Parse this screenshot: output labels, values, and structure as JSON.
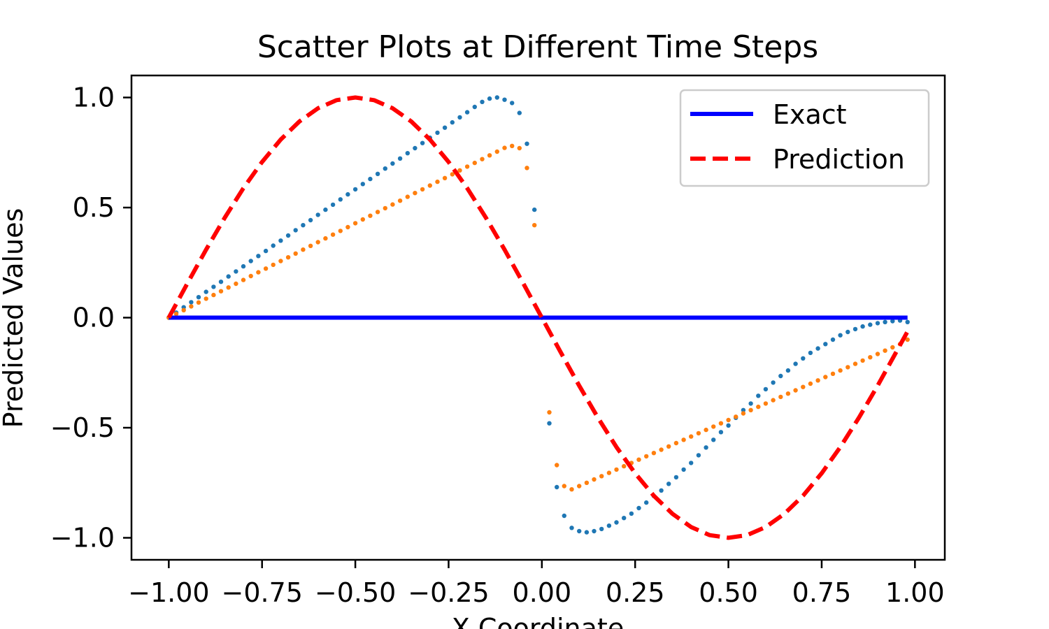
{
  "chart_data": {
    "type": "scatter",
    "title": "Scatter Plots at Different Time Steps",
    "xlabel": "X Coordinate",
    "ylabel": "Predicted Values",
    "xlim": [
      -1.1,
      1.08
    ],
    "ylim": [
      -1.1,
      1.1
    ],
    "xticks": [
      -1.0,
      -0.75,
      -0.5,
      -0.25,
      0.0,
      0.25,
      0.5,
      0.75,
      1.0
    ],
    "xtick_labels": [
      "−1.00",
      "−0.75",
      "−0.50",
      "−0.25",
      "0.00",
      "0.25",
      "0.50",
      "0.75",
      "1.00"
    ],
    "yticks": [
      -1.0,
      -0.5,
      0.0,
      0.5,
      1.0
    ],
    "ytick_labels": [
      "−1.0",
      "−0.5",
      "0.0",
      "0.5",
      "1.0"
    ],
    "grid": false,
    "legend_position": "top-right",
    "series": [
      {
        "name": "Exact",
        "kind": "line",
        "style": "solid",
        "color": "#0000ff",
        "x": [
          -1.0,
          0.0,
          0.98
        ],
        "y": [
          0.0,
          0.0,
          0.0
        ]
      },
      {
        "name": "Prediction",
        "kind": "line",
        "style": "dashed",
        "color": "#ff0000",
        "x": [
          -1.0,
          -0.95,
          -0.9,
          -0.85,
          -0.8,
          -0.75,
          -0.7,
          -0.65,
          -0.6,
          -0.55,
          -0.5,
          -0.45,
          -0.4,
          -0.35,
          -0.3,
          -0.25,
          -0.2,
          -0.15,
          -0.1,
          -0.05,
          0.0,
          0.05,
          0.1,
          0.15,
          0.2,
          0.25,
          0.3,
          0.35,
          0.4,
          0.45,
          0.5,
          0.55,
          0.6,
          0.65,
          0.7,
          0.75,
          0.8,
          0.85,
          0.9,
          0.95,
          0.98
        ],
        "y": [
          0.0,
          0.156,
          0.309,
          0.454,
          0.588,
          0.707,
          0.809,
          0.891,
          0.951,
          0.988,
          1.0,
          0.988,
          0.951,
          0.891,
          0.809,
          0.707,
          0.588,
          0.454,
          0.309,
          0.156,
          0.0,
          -0.156,
          -0.309,
          -0.454,
          -0.588,
          -0.707,
          -0.809,
          -0.891,
          -0.951,
          -0.988,
          -1.0,
          -0.988,
          -0.951,
          -0.891,
          -0.809,
          -0.707,
          -0.588,
          -0.454,
          -0.309,
          -0.156,
          -0.063
        ]
      },
      {
        "kind": "scatter",
        "color": "#1f77b4",
        "x": [
          -1.0,
          -0.98,
          -0.96,
          -0.94,
          -0.92,
          -0.9,
          -0.88,
          -0.86,
          -0.84,
          -0.82,
          -0.8,
          -0.78,
          -0.76,
          -0.74,
          -0.72,
          -0.7,
          -0.68,
          -0.66,
          -0.64,
          -0.62,
          -0.6,
          -0.58,
          -0.56,
          -0.54,
          -0.52,
          -0.5,
          -0.48,
          -0.46,
          -0.44,
          -0.42,
          -0.4,
          -0.38,
          -0.36,
          -0.34,
          -0.32,
          -0.3,
          -0.28,
          -0.26,
          -0.24,
          -0.22,
          -0.2,
          -0.18,
          -0.16,
          -0.14,
          -0.12,
          -0.1,
          -0.08,
          -0.06,
          -0.04,
          -0.02,
          0.0,
          0.02,
          0.04,
          0.06,
          0.08,
          0.1,
          0.12,
          0.14,
          0.16,
          0.18,
          0.2,
          0.22,
          0.24,
          0.26,
          0.28,
          0.3,
          0.32,
          0.34,
          0.36,
          0.38,
          0.4,
          0.42,
          0.44,
          0.46,
          0.48,
          0.5,
          0.52,
          0.54,
          0.56,
          0.58,
          0.6,
          0.62,
          0.64,
          0.66,
          0.68,
          0.7,
          0.72,
          0.74,
          0.76,
          0.78,
          0.8,
          0.82,
          0.84,
          0.86,
          0.88,
          0.9,
          0.92,
          0.94,
          0.96,
          0.98
        ],
        "y": [
          0.0,
          0.023,
          0.047,
          0.07,
          0.093,
          0.117,
          0.14,
          0.163,
          0.187,
          0.21,
          0.233,
          0.257,
          0.28,
          0.303,
          0.327,
          0.35,
          0.373,
          0.397,
          0.42,
          0.443,
          0.467,
          0.49,
          0.513,
          0.537,
          0.56,
          0.583,
          0.607,
          0.63,
          0.653,
          0.677,
          0.7,
          0.723,
          0.747,
          0.77,
          0.793,
          0.817,
          0.84,
          0.863,
          0.887,
          0.91,
          0.933,
          0.957,
          0.98,
          0.995,
          1.0,
          0.99,
          0.975,
          0.93,
          0.79,
          0.49,
          0.0,
          -0.48,
          -0.77,
          -0.9,
          -0.955,
          -0.97,
          -0.975,
          -0.97,
          -0.96,
          -0.945,
          -0.93,
          -0.91,
          -0.89,
          -0.865,
          -0.84,
          -0.81,
          -0.785,
          -0.755,
          -0.725,
          -0.69,
          -0.66,
          -0.625,
          -0.59,
          -0.555,
          -0.52,
          -0.49,
          -0.455,
          -0.42,
          -0.39,
          -0.355,
          -0.325,
          -0.295,
          -0.265,
          -0.24,
          -0.21,
          -0.185,
          -0.16,
          -0.14,
          -0.12,
          -0.1,
          -0.08,
          -0.065,
          -0.052,
          -0.04,
          -0.032,
          -0.025,
          -0.02,
          -0.016,
          -0.013,
          -0.02
        ]
      },
      {
        "kind": "scatter",
        "color": "#ff7f0e",
        "x": [
          -1.0,
          -0.98,
          -0.96,
          -0.94,
          -0.92,
          -0.9,
          -0.88,
          -0.86,
          -0.84,
          -0.82,
          -0.8,
          -0.78,
          -0.76,
          -0.74,
          -0.72,
          -0.7,
          -0.68,
          -0.66,
          -0.64,
          -0.62,
          -0.6,
          -0.58,
          -0.56,
          -0.54,
          -0.52,
          -0.5,
          -0.48,
          -0.46,
          -0.44,
          -0.42,
          -0.4,
          -0.38,
          -0.36,
          -0.34,
          -0.32,
          -0.3,
          -0.28,
          -0.26,
          -0.24,
          -0.22,
          -0.2,
          -0.18,
          -0.16,
          -0.14,
          -0.12,
          -0.1,
          -0.08,
          -0.06,
          -0.04,
          -0.02,
          0.0,
          0.02,
          0.04,
          0.06,
          0.08,
          0.1,
          0.12,
          0.14,
          0.16,
          0.18,
          0.2,
          0.22,
          0.24,
          0.26,
          0.28,
          0.3,
          0.32,
          0.34,
          0.36,
          0.38,
          0.4,
          0.42,
          0.44,
          0.46,
          0.48,
          0.5,
          0.52,
          0.54,
          0.56,
          0.58,
          0.6,
          0.62,
          0.64,
          0.66,
          0.68,
          0.7,
          0.72,
          0.74,
          0.76,
          0.78,
          0.8,
          0.82,
          0.84,
          0.86,
          0.88,
          0.9,
          0.92,
          0.94,
          0.96,
          0.98
        ],
        "y": [
          0.0,
          0.017,
          0.034,
          0.051,
          0.069,
          0.086,
          0.103,
          0.12,
          0.137,
          0.154,
          0.171,
          0.189,
          0.206,
          0.223,
          0.24,
          0.257,
          0.274,
          0.291,
          0.309,
          0.326,
          0.343,
          0.36,
          0.377,
          0.394,
          0.411,
          0.429,
          0.446,
          0.463,
          0.48,
          0.497,
          0.514,
          0.531,
          0.549,
          0.566,
          0.583,
          0.6,
          0.617,
          0.634,
          0.651,
          0.669,
          0.686,
          0.703,
          0.72,
          0.737,
          0.754,
          0.771,
          0.78,
          0.77,
          0.68,
          0.42,
          0.0,
          -0.43,
          -0.67,
          -0.765,
          -0.78,
          -0.765,
          -0.75,
          -0.735,
          -0.72,
          -0.705,
          -0.69,
          -0.675,
          -0.66,
          -0.645,
          -0.63,
          -0.615,
          -0.6,
          -0.585,
          -0.57,
          -0.555,
          -0.54,
          -0.525,
          -0.51,
          -0.495,
          -0.48,
          -0.465,
          -0.45,
          -0.435,
          -0.42,
          -0.405,
          -0.39,
          -0.375,
          -0.36,
          -0.345,
          -0.33,
          -0.315,
          -0.3,
          -0.285,
          -0.27,
          -0.255,
          -0.24,
          -0.225,
          -0.21,
          -0.195,
          -0.18,
          -0.165,
          -0.15,
          -0.135,
          -0.12,
          -0.1
        ]
      }
    ]
  }
}
